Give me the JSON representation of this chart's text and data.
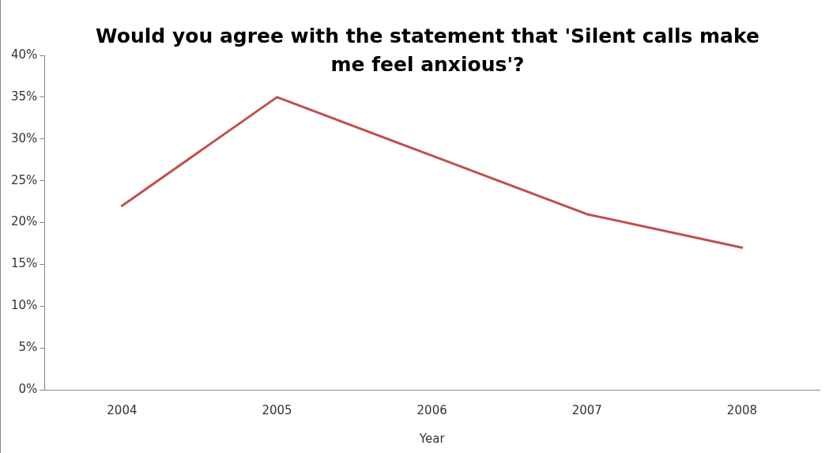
{
  "chart_data": {
    "type": "line",
    "title": "Would you agree with the statement that 'Silent calls make me feel anxious'?",
    "xlabel": "Year",
    "categories": [
      "2004",
      "2005",
      "2006",
      "2007",
      "2008"
    ],
    "series": [
      {
        "color": "#c0504d",
        "values": [
          22,
          35,
          28,
          21,
          17
        ]
      }
    ],
    "ylim": [
      0,
      40
    ],
    "yticks": [
      {
        "value": 0,
        "label": "0%"
      },
      {
        "value": 5,
        "label": "5%"
      },
      {
        "value": 10,
        "label": "10%"
      },
      {
        "value": 15,
        "label": "15%"
      },
      {
        "value": 20,
        "label": "20%"
      },
      {
        "value": 25,
        "label": "25%"
      },
      {
        "value": 30,
        "label": "30%"
      },
      {
        "value": 35,
        "label": "35%"
      },
      {
        "value": 40,
        "label": "40%"
      }
    ],
    "grid": false,
    "legend": false,
    "marker": "none",
    "line_style": "solid"
  }
}
